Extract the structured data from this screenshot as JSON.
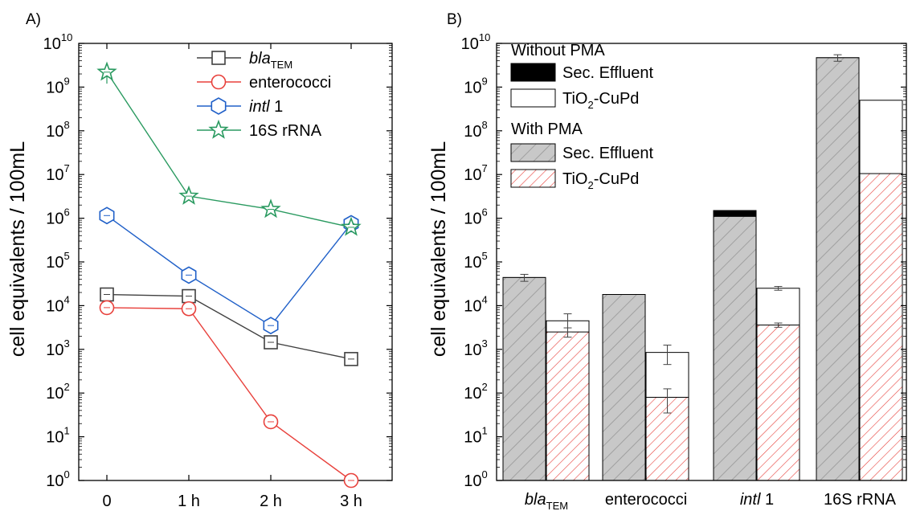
{
  "chart_data": [
    {
      "panel_label": "A)",
      "type": "line",
      "ylabel": "cell equivalents / 100mL",
      "y_scale": "log",
      "ylim": [
        1,
        10000000000
      ],
      "y_ticks": [
        {
          "base": "10",
          "exp": "0"
        },
        {
          "base": "10",
          "exp": "1"
        },
        {
          "base": "10",
          "exp": "2"
        },
        {
          "base": "10",
          "exp": "3"
        },
        {
          "base": "10",
          "exp": "4"
        },
        {
          "base": "10",
          "exp": "5"
        },
        {
          "base": "10",
          "exp": "6"
        },
        {
          "base": "10",
          "exp": "7"
        },
        {
          "base": "10",
          "exp": "8"
        },
        {
          "base": "10",
          "exp": "9"
        },
        {
          "base": "10",
          "exp": "10"
        }
      ],
      "categories": [
        "0",
        "1 h",
        "2 h",
        "3 h"
      ],
      "legend_position": "top-right",
      "series": [
        {
          "name": "bla",
          "name_sub": "TEM",
          "marker": "square",
          "color": "#404040",
          "values": [
            18000,
            16500,
            1450,
            600
          ],
          "errors": [
            0,
            0,
            0,
            150
          ]
        },
        {
          "name": "enterococci",
          "name_sub": "",
          "marker": "circle",
          "color": "#e8413c",
          "values": [
            9000,
            8500,
            22,
            1
          ],
          "errors": [
            0,
            0,
            5,
            0
          ]
        },
        {
          "name": "intl 1",
          "name_sub": "",
          "marker": "hexagon",
          "color": "#2060c8",
          "values": [
            1150000,
            50000,
            3500,
            750000
          ],
          "errors": [
            0,
            0,
            0,
            0
          ]
        },
        {
          "name": "16S rRNA",
          "name_sub": "",
          "marker": "star",
          "color": "#2a9a60",
          "values": [
            2200000000,
            3200000,
            1600000,
            620000
          ],
          "errors": [
            1000000000,
            0,
            0,
            0
          ]
        }
      ]
    },
    {
      "panel_label": "B)",
      "type": "bar",
      "ylabel": "cell equivalents / 100mL",
      "y_scale": "log",
      "ylim": [
        1,
        10000000000
      ],
      "y_ticks": [
        {
          "base": "10",
          "exp": "0"
        },
        {
          "base": "10",
          "exp": "1"
        },
        {
          "base": "10",
          "exp": "2"
        },
        {
          "base": "10",
          "exp": "3"
        },
        {
          "base": "10",
          "exp": "4"
        },
        {
          "base": "10",
          "exp": "5"
        },
        {
          "base": "10",
          "exp": "6"
        },
        {
          "base": "10",
          "exp": "7"
        },
        {
          "base": "10",
          "exp": "8"
        },
        {
          "base": "10",
          "exp": "9"
        },
        {
          "base": "10",
          "exp": "10"
        }
      ],
      "categories": [
        {
          "main": "bla",
          "sub": "TEM"
        },
        {
          "main": "enterococci",
          "sub": ""
        },
        {
          "main": "intl 1",
          "sub": ""
        },
        {
          "main": "16S rRNA",
          "sub": ""
        }
      ],
      "legend_position": "top-left",
      "legend_groups": [
        {
          "title": "Without PMA",
          "entries": [
            {
              "main": "Sec. Effluent",
              "sub": "",
              "tail": "",
              "fill": "black"
            },
            {
              "main": "TiO",
              "sub": "2",
              "tail": "-CuPd",
              "fill": "white"
            }
          ]
        },
        {
          "title": "With PMA",
          "entries": [
            {
              "main": "Sec. Effluent",
              "sub": "",
              "tail": "",
              "fill": "gray-hatch"
            },
            {
              "main": "TiO",
              "sub": "2",
              "tail": "-CuPd",
              "fill": "red-hatch"
            }
          ]
        }
      ],
      "series": [
        {
          "name": "Without PMA · Sec. Effluent",
          "fill": "black",
          "position": "left",
          "values": [
            44000,
            18000,
            1500000,
            4700000000
          ]
        },
        {
          "name": "With PMA · Sec. Effluent",
          "fill": "gray-hatch",
          "position": "left",
          "values": [
            44000,
            18000,
            1100000,
            4700000000
          ],
          "errors": [
            8000,
            0,
            0,
            800000000
          ]
        },
        {
          "name": "Without PMA · TiO2-CuPd",
          "fill": "white",
          "position": "right",
          "values": [
            4500,
            850,
            25000,
            500000000
          ],
          "errors": [
            2000,
            400,
            2500,
            0
          ]
        },
        {
          "name": "With PMA · TiO2-CuPd",
          "fill": "red-hatch",
          "position": "right",
          "values": [
            2500,
            80,
            3600,
            10500000
          ],
          "errors": [
            600,
            45,
            400,
            0
          ]
        }
      ],
      "colors": {
        "gray_fill": "#c8c8c8",
        "gray_hatch": "#a0a0a0",
        "red_hatch": "#e8413c"
      }
    }
  ]
}
